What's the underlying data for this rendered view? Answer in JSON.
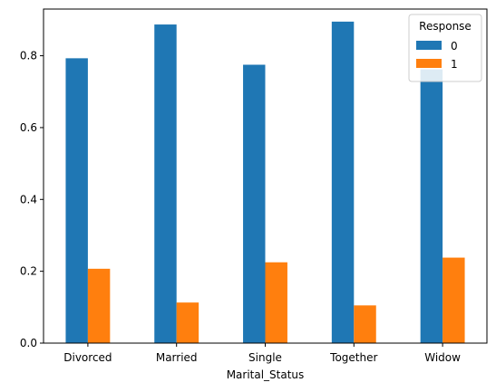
{
  "chart_data": {
    "type": "bar",
    "title": "",
    "xlabel": "Marital_Status",
    "ylabel": "",
    "categories": [
      "Divorced",
      "Married",
      "Single",
      "Together",
      "Widow"
    ],
    "series": [
      {
        "name": "0",
        "values": [
          0.793,
          0.887,
          0.775,
          0.895,
          0.762
        ],
        "color": "#1f77b4"
      },
      {
        "name": "1",
        "values": [
          0.207,
          0.113,
          0.225,
          0.105,
          0.238
        ],
        "color": "#ff7f0e"
      }
    ],
    "ylim": [
      0,
      0.93
    ],
    "yticks": [
      0.0,
      0.2,
      0.4,
      0.6,
      0.8
    ],
    "ytick_labels": [
      "0.0",
      "0.2",
      "0.4",
      "0.6",
      "0.8"
    ],
    "grid": false,
    "legend": {
      "title": "Response",
      "position": "top-right"
    }
  }
}
